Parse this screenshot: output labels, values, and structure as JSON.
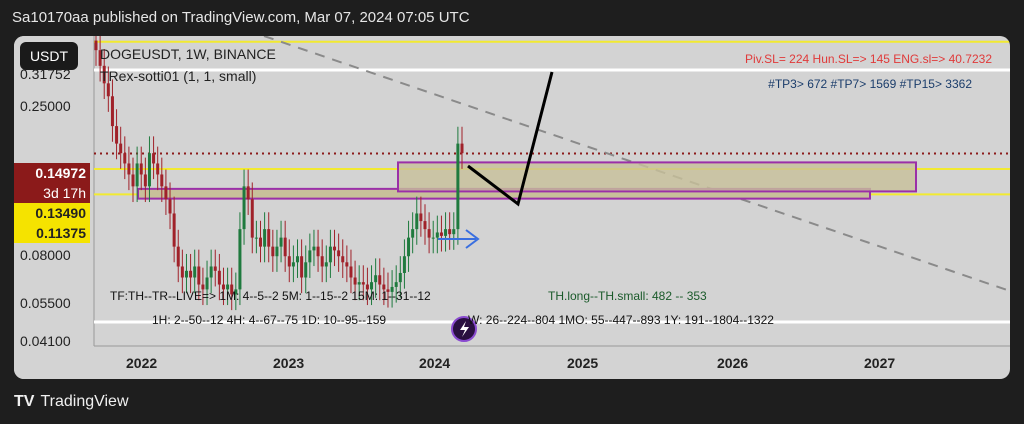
{
  "header": {
    "published_text": "Sa10170aa published on TradingView.com, Mar 07, 2024 07:05 UTC"
  },
  "chart": {
    "currency_badge": "USDT",
    "symbol_line": "DOGEUSDT, 1W, BINANCE",
    "indicator_line": "TRex-sotti01 (1, 1, small)",
    "top_right_red": "Piv.SL= 224  Hun.SL=> 145  ENG.sl=> 40.7232",
    "top_right_tp": "#TP3> 672  #TP7> 1569  #TP15> 3362",
    "tf_line_1": "TF:TH--TR--LIVE=>  1M: 4--5--2    5M: 1--15--2    15M: 1--31--12",
    "tf_line_2": "1H: 2--50--12    4H: 4--67--75    1D: 10--95--159",
    "tf_line_3": "W: 26--224--804    1MO: 55--447--893    1Y: 191--1804--1322",
    "th_line": "TH.long--TH.small: 482 -- 353",
    "price_labels": {
      "top_partial": "0.31752",
      "p025": "0.25000",
      "current": "0.14972",
      "countdown": "3d 17h",
      "p01349": "0.13490",
      "p01137": "0.11375",
      "p008": "0.08000",
      "p0055": "0.05500",
      "p0041": "0.04100"
    },
    "colors": {
      "current_bg": "#8b1a1a",
      "yellow_label": "#f5e300",
      "zone_border": "#9b2fa8",
      "zone_fill": "#c8c09a",
      "yellow_line": "#f2ea30",
      "dotted_red": "#8b1a1a",
      "arrow_blue": "#3a6fe0"
    }
  },
  "chart_data": {
    "type": "candlestick",
    "x_ticks": [
      "2022",
      "2023",
      "2024",
      "2025",
      "2026",
      "2027"
    ],
    "y_ticks": [
      0.041,
      0.055,
      0.08,
      0.11375,
      0.1349,
      0.14972,
      0.25,
      0.31752
    ],
    "y_scale": "log",
    "ylim": [
      0.041,
      0.33
    ],
    "current_price": 0.14972,
    "horizontal_lines": [
      0.31752,
      0.1349,
      0.11375
    ],
    "zones": [
      {
        "from_date": "2021-11",
        "to_date": "2026-09",
        "low": 0.1105,
        "high": 0.118
      },
      {
        "from_date": "2023-11",
        "to_date": "2027-02",
        "low": 0.116,
        "high": 0.141
      }
    ],
    "candles_close": [
      0.3,
      0.27,
      0.24,
      0.22,
      0.18,
      0.16,
      0.15,
      0.14,
      0.13,
      0.12,
      0.14,
      0.13,
      0.12,
      0.15,
      0.14,
      0.13,
      0.12,
      0.11,
      0.1,
      0.08,
      0.07,
      0.065,
      0.068,
      0.065,
      0.07,
      0.062,
      0.06,
      0.065,
      0.07,
      0.068,
      0.062,
      0.06,
      0.062,
      0.058,
      0.06,
      0.09,
      0.12,
      0.11,
      0.085,
      0.085,
      0.08,
      0.09,
      0.08,
      0.075,
      0.08,
      0.085,
      0.075,
      0.07,
      0.072,
      0.075,
      0.065,
      0.072,
      0.078,
      0.08,
      0.075,
      0.07,
      0.072,
      0.08,
      0.078,
      0.075,
      0.072,
      0.07,
      0.065,
      0.062,
      0.063,
      0.062,
      0.06,
      0.063,
      0.066,
      0.062,
      0.06,
      0.059,
      0.061,
      0.063,
      0.067,
      0.075,
      0.085,
      0.09,
      0.1,
      0.095,
      0.09,
      0.085,
      0.085,
      0.088,
      0.086,
      0.09,
      0.087,
      0.09,
      0.16,
      0.15
    ]
  }
}
